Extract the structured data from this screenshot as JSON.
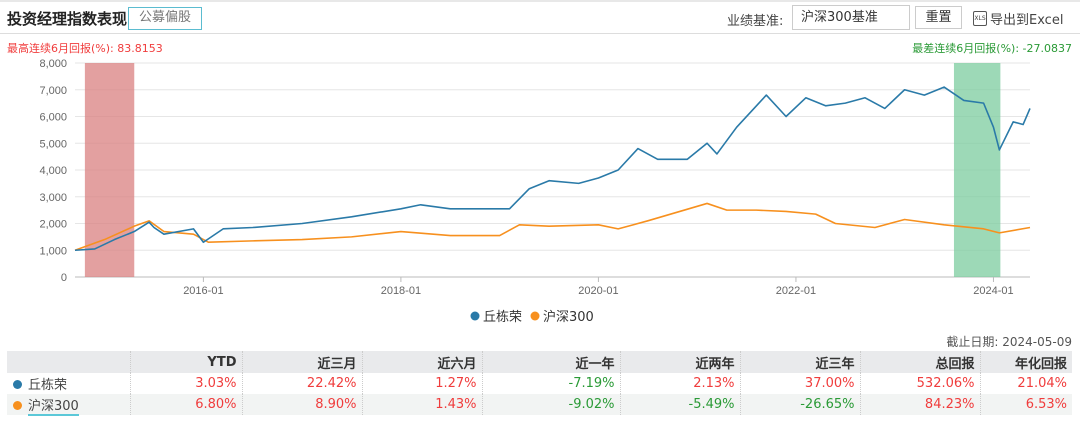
{
  "header": {
    "title": "投资经理指数表现",
    "tag": "公募偏股",
    "benchmark_label": "业绩基准:",
    "benchmark_value": "沪深300基准",
    "reset": "重置",
    "export": "导出到Excel",
    "xls": "XLS"
  },
  "max_return_text": "最高连续6月回报(%):  83.8153",
  "min_return_text": "最差连续6月回报(%):  -27.0837",
  "as_of": "截止日期:  2024-05-09",
  "colors": {
    "fund": "#2a7aa8",
    "bench": "#f7901e",
    "up": "#f03c3c",
    "down": "#2a9a36",
    "max_band": "#d98080",
    "min_band": "#7ccc9f"
  },
  "chart_data": {
    "type": "line",
    "ylim": [
      0,
      8000
    ],
    "xlim": [
      2014.7,
      2024.37
    ],
    "yticks": [
      "0",
      "1,000",
      "2,000",
      "3,000",
      "4,000",
      "5,000",
      "6,000",
      "7,000",
      "8,000"
    ],
    "ytick_values": [
      0,
      1000,
      2000,
      3000,
      4000,
      5000,
      6000,
      7000,
      8000
    ],
    "xticks": [
      "2016-01",
      "2018-01",
      "2020-01",
      "2022-01",
      "2024-01"
    ],
    "xtick_values": [
      2016.0,
      2018.0,
      2020.0,
      2022.0,
      2024.0
    ],
    "max_6m_band": [
      2014.8,
      2015.3
    ],
    "min_6m_band": [
      2023.6,
      2024.07
    ],
    "legend": [
      "丘栋荣",
      "沪深300"
    ],
    "legend_position": "bottom",
    "series": [
      {
        "name": "丘栋荣",
        "x": [
          2014.7,
          2014.9,
          2015.1,
          2015.3,
          2015.45,
          2015.5,
          2015.6,
          2015.9,
          2016.0,
          2016.2,
          2016.5,
          2017.0,
          2017.5,
          2018.0,
          2018.2,
          2018.5,
          2019.0,
          2019.1,
          2019.3,
          2019.5,
          2019.8,
          2020.0,
          2020.2,
          2020.4,
          2020.6,
          2020.9,
          2021.1,
          2021.2,
          2021.4,
          2021.6,
          2021.7,
          2021.9,
          2022.1,
          2022.3,
          2022.5,
          2022.7,
          2022.9,
          2023.1,
          2023.3,
          2023.5,
          2023.7,
          2023.9,
          2024.0,
          2024.06,
          2024.2,
          2024.3,
          2024.37
        ],
        "y": [
          1000,
          1050,
          1400,
          1700,
          2050,
          1850,
          1600,
          1800,
          1300,
          1800,
          1850,
          2000,
          2250,
          2550,
          2700,
          2550,
          2550,
          2550,
          3300,
          3600,
          3500,
          3700,
          4000,
          4800,
          4400,
          4400,
          5000,
          4600,
          5600,
          6400,
          6800,
          6000,
          6700,
          6400,
          6500,
          6700,
          6300,
          7000,
          6800,
          7100,
          6600,
          6500,
          5600,
          4750,
          5800,
          5700,
          6300
        ]
      },
      {
        "name": "沪深300",
        "x": [
          2014.7,
          2015.0,
          2015.3,
          2015.45,
          2015.6,
          2015.9,
          2016.05,
          2016.5,
          2017.0,
          2017.5,
          2018.0,
          2018.5,
          2019.0,
          2019.2,
          2019.5,
          2020.0,
          2020.2,
          2020.5,
          2021.1,
          2021.3,
          2021.6,
          2021.9,
          2022.2,
          2022.4,
          2022.8,
          2023.1,
          2023.5,
          2023.9,
          2024.06,
          2024.37
        ],
        "y": [
          1000,
          1400,
          1900,
          2100,
          1700,
          1600,
          1300,
          1350,
          1400,
          1500,
          1700,
          1550,
          1550,
          1950,
          1900,
          1950,
          1800,
          2100,
          2750,
          2500,
          2500,
          2450,
          2350,
          2000,
          1850,
          2150,
          1950,
          1800,
          1650,
          1850
        ]
      }
    ]
  },
  "table": {
    "headers": [
      "",
      "YTD",
      "近三月",
      "近六月",
      "近一年",
      "近两年",
      "近三年",
      "总回报",
      "年化回报"
    ],
    "rows": [
      {
        "name": "丘栋荣",
        "values": [
          "3.03%",
          "22.42%",
          "1.27%",
          "-7.19%",
          "2.13%",
          "37.00%",
          "532.06%",
          "21.04%"
        ]
      },
      {
        "name": "沪深300",
        "values": [
          "6.80%",
          "8.90%",
          "1.43%",
          "-9.02%",
          "-5.49%",
          "-26.65%",
          "84.23%",
          "6.53%"
        ]
      }
    ]
  }
}
